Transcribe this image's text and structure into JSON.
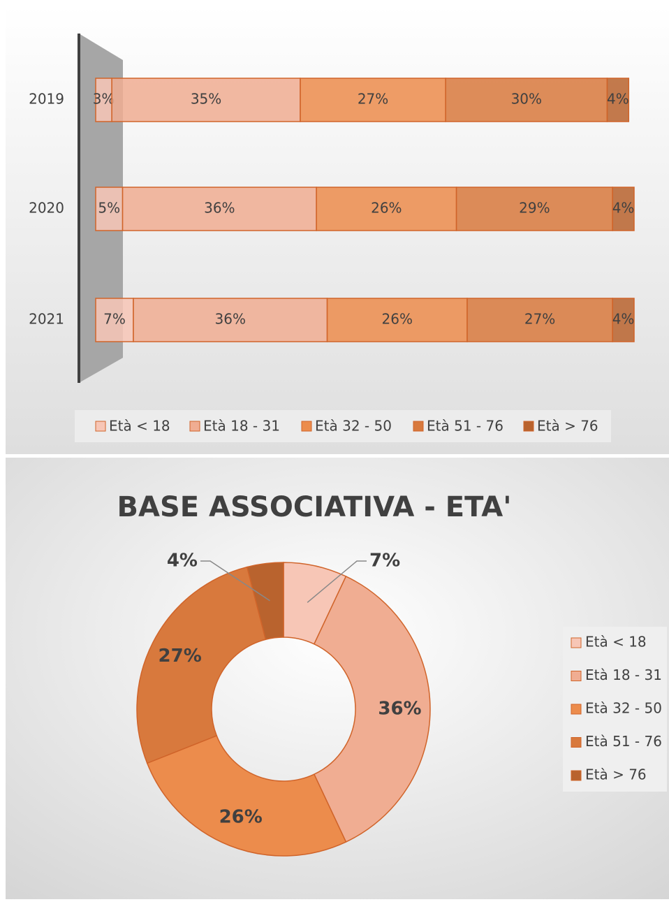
{
  "chart_data": [
    {
      "type": "stacked-bar",
      "categories": [
        "2019",
        "2020",
        "2021"
      ],
      "xlim": [
        0,
        100
      ],
      "legend": "bottom",
      "series": [
        {
          "name": "Età < 18",
          "color": "#f7c6b6",
          "values": [
            3,
            5,
            7
          ],
          "value_labels": [
            "3%",
            "5%",
            "7%"
          ]
        },
        {
          "name": "Età 18 - 31",
          "color": "#f0ad92",
          "values": [
            35,
            36,
            36
          ],
          "value_labels": [
            "35%",
            "36%",
            "36%"
          ]
        },
        {
          "name": "Età 32 - 50",
          "color": "#ec8c4c",
          "values": [
            27,
            26,
            26
          ],
          "value_labels": [
            "27%",
            "26%",
            "26%"
          ]
        },
        {
          "name": "Età 51 - 76",
          "color": "#d8793d",
          "values": [
            30,
            29,
            27
          ],
          "value_labels": [
            "30%",
            "29%",
            "27%"
          ]
        },
        {
          "name": "Età > 76",
          "color": "#b9632e",
          "values": [
            4,
            4,
            4
          ],
          "value_labels": [
            "4%",
            "4%",
            "4%"
          ]
        }
      ]
    },
    {
      "type": "donut",
      "title": "BASE ASSOCIATIVA - ETA'",
      "legend": "right",
      "categories": [
        "Età < 18",
        "Età 18 - 31",
        "Età 32 - 50",
        "Età 51 - 76",
        "Età > 76"
      ],
      "colors": [
        "#f7c6b6",
        "#f0ad92",
        "#ec8c4c",
        "#d8793d",
        "#b9632e"
      ],
      "values": [
        7,
        36,
        26,
        27,
        4
      ],
      "value_labels": [
        "7%",
        "36%",
        "26%",
        "27%",
        "4%"
      ]
    }
  ]
}
